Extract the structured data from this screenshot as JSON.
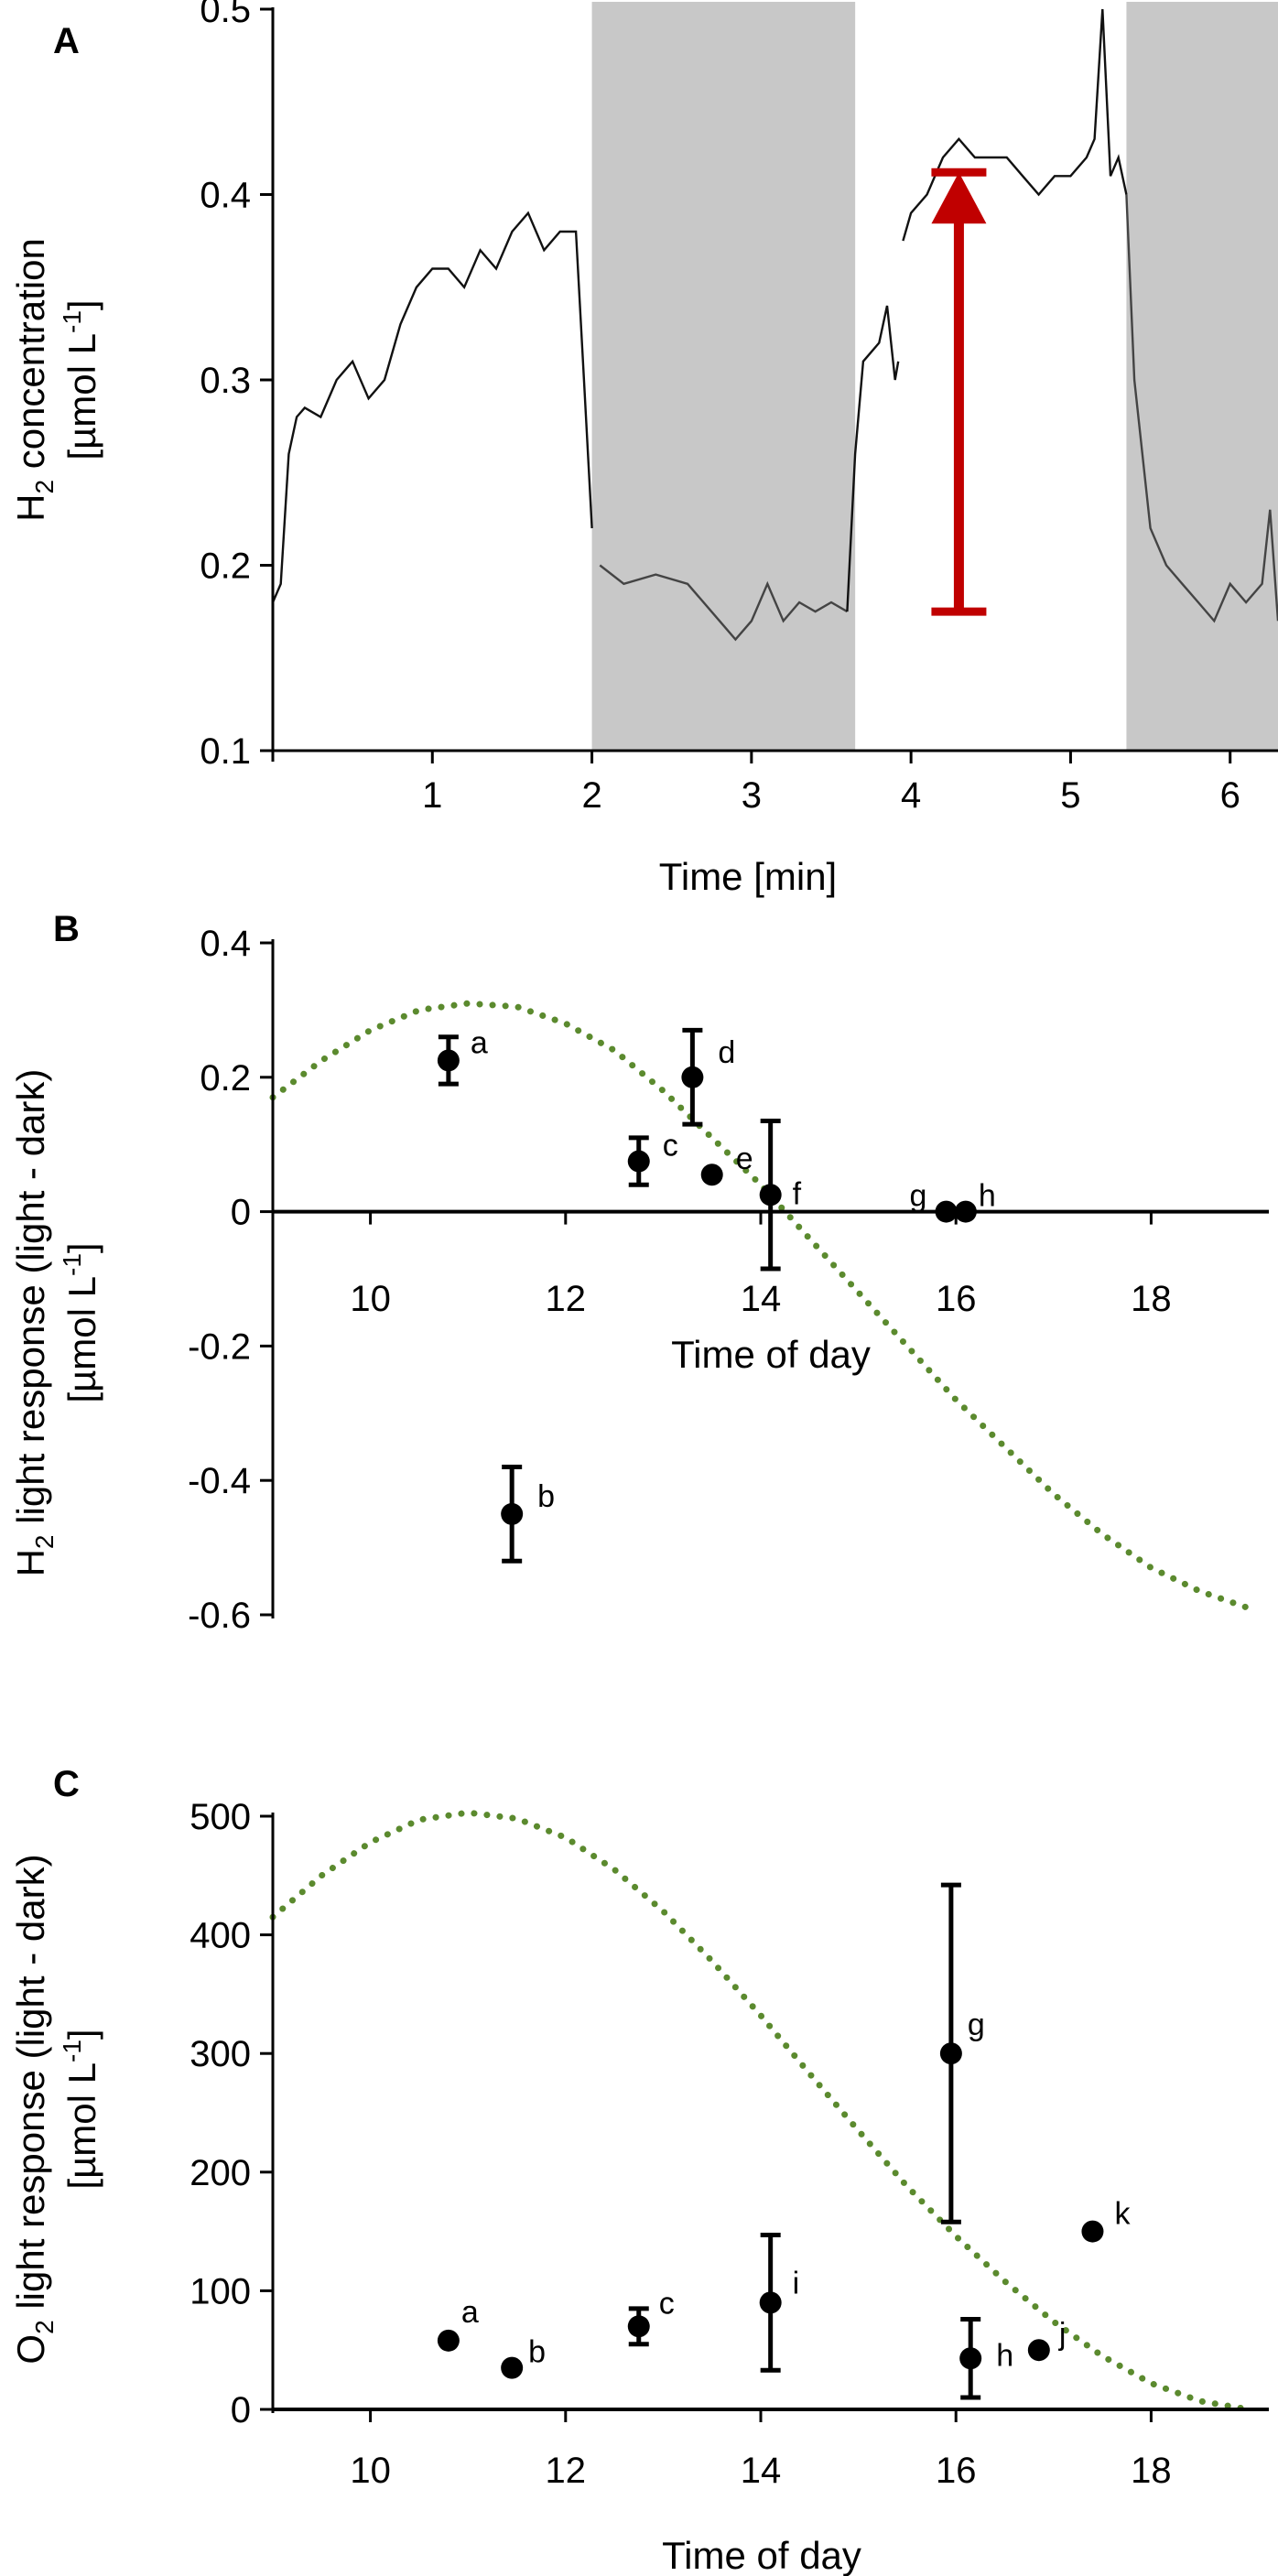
{
  "chart_data": [
    {
      "panel": "A",
      "type": "line",
      "xlabel": "Time [min]",
      "ylabel_line1": "H",
      "ylabel_line1_sub": "2",
      "ylabel_line1_rest": " concentration",
      "ylabel_line2": "[µmol L",
      "ylabel_line2_sup": "-1",
      "ylabel_line2_rest": "]",
      "xlim": [
        0,
        6.3
      ],
      "ylim": [
        0.1,
        0.5
      ],
      "xticks": [
        1,
        2,
        3,
        4,
        5,
        6
      ],
      "xtick_labels": [
        "1",
        "2",
        "3",
        "4",
        "5",
        "6"
      ],
      "yticks": [
        0.1,
        0.2,
        0.3,
        0.4,
        0.5
      ],
      "ytick_labels": [
        "0.1",
        "0.2",
        "0.3",
        "0.4",
        "0.5"
      ],
      "dark_periods": [
        [
          2.0,
          3.65
        ],
        [
          5.35,
          6.3
        ]
      ],
      "arrow": {
        "x": 4.3,
        "y_from": 0.175,
        "y_to": 0.41
      },
      "series": [
        {
          "name": "light1",
          "x": [
            0.0,
            0.05,
            0.1,
            0.15,
            0.2,
            0.3,
            0.4,
            0.5,
            0.6,
            0.7,
            0.8,
            0.9,
            1.0,
            1.1,
            1.2,
            1.3,
            1.4,
            1.5,
            1.6,
            1.7,
            1.8,
            1.9,
            1.95,
            2.0
          ],
          "y": [
            0.18,
            0.19,
            0.26,
            0.28,
            0.285,
            0.28,
            0.3,
            0.31,
            0.29,
            0.3,
            0.33,
            0.35,
            0.36,
            0.36,
            0.35,
            0.37,
            0.36,
            0.38,
            0.39,
            0.37,
            0.38,
            0.38,
            0.3,
            0.22
          ]
        },
        {
          "name": "dark1",
          "x": [
            2.05,
            2.2,
            2.4,
            2.6,
            2.8,
            2.9,
            3.0,
            3.1,
            3.2,
            3.3,
            3.4,
            3.5,
            3.6
          ],
          "y": [
            0.2,
            0.19,
            0.195,
            0.19,
            0.17,
            0.16,
            0.17,
            0.19,
            0.17,
            0.18,
            0.175,
            0.18,
            0.175
          ]
        },
        {
          "name": "light2",
          "x": [
            3.6,
            3.65,
            3.7,
            3.8,
            3.85,
            3.9,
            3.92
          ],
          "y": [
            0.175,
            0.26,
            0.31,
            0.32,
            0.34,
            0.3,
            0.31
          ]
        },
        {
          "name": "light3",
          "x": [
            3.95,
            4.0,
            4.1,
            4.2,
            4.3,
            4.4,
            4.5,
            4.6,
            4.7,
            4.8,
            4.9,
            5.0,
            5.1,
            5.15,
            5.2,
            5.25,
            5.3,
            5.35
          ],
          "y": [
            0.375,
            0.39,
            0.4,
            0.42,
            0.43,
            0.42,
            0.42,
            0.42,
            0.41,
            0.4,
            0.41,
            0.41,
            0.42,
            0.43,
            0.5,
            0.41,
            0.42,
            0.4
          ]
        },
        {
          "name": "dark2",
          "x": [
            5.35,
            5.4,
            5.5,
            5.6,
            5.7,
            5.8,
            5.9,
            6.0,
            6.1,
            6.2,
            6.25,
            6.3
          ],
          "y": [
            0.4,
            0.3,
            0.22,
            0.2,
            0.19,
            0.18,
            0.17,
            0.19,
            0.18,
            0.19,
            0.23,
            0.17
          ]
        }
      ]
    },
    {
      "panel": "B",
      "type": "scatter",
      "xlabel": "Time of day",
      "ylabel_line1": "H",
      "ylabel_line1_sub": "2",
      "ylabel_line1_rest": " light response (light - dark)",
      "ylabel_line2": "[µmol L",
      "ylabel_line2_sup": "-1",
      "ylabel_line2_rest": "]",
      "xlim": [
        9,
        19.3
      ],
      "ylim": [
        -0.6,
        0.4
      ],
      "xticks": [
        10,
        12,
        14,
        16,
        18
      ],
      "xtick_labels": [
        "10",
        "12",
        "14",
        "16",
        "18"
      ],
      "yticks": [
        -0.6,
        -0.4,
        -0.2,
        0,
        0.2,
        0.4
      ],
      "ytick_labels": [
        "-0.6",
        "-0.4",
        "-0.2",
        "0",
        "0.2",
        "0.4"
      ],
      "points": [
        {
          "label": "a",
          "x": 10.8,
          "y": 0.225,
          "err": 0.035
        },
        {
          "label": "b",
          "x": 11.45,
          "y": -0.45,
          "err": 0.07
        },
        {
          "label": "c",
          "x": 12.75,
          "y": 0.075,
          "err": 0.035
        },
        {
          "label": "d",
          "x": 13.3,
          "y": 0.2,
          "err": 0.07
        },
        {
          "label": "e",
          "x": 13.5,
          "y": 0.055,
          "err": 0
        },
        {
          "label": "f",
          "x": 14.1,
          "y": 0.025,
          "err": 0.11
        },
        {
          "label": "g",
          "x": 15.9,
          "y": 0.0,
          "err": 0
        },
        {
          "label": "h",
          "x": 16.1,
          "y": 0.0,
          "err": 0
        }
      ],
      "curve": {
        "x": [
          9.0,
          9.5,
          10.0,
          10.5,
          11.0,
          11.5,
          12.0,
          12.5,
          13.0,
          13.5,
          14.0,
          14.5,
          15.0,
          15.5,
          16.0,
          16.5,
          17.0,
          17.5,
          18.0,
          18.5,
          19.0
        ],
        "y": [
          0.17,
          0.225,
          0.27,
          0.3,
          0.31,
          0.305,
          0.28,
          0.24,
          0.18,
          0.11,
          0.04,
          -0.04,
          -0.12,
          -0.2,
          -0.28,
          -0.35,
          -0.42,
          -0.48,
          -0.53,
          -0.565,
          -0.59
        ]
      }
    },
    {
      "panel": "C",
      "type": "scatter",
      "xlabel": "Time of day",
      "ylabel_line1": "O",
      "ylabel_line1_sub": "2",
      "ylabel_line1_rest": " light response (light - dark)",
      "ylabel_line2": "[µmol L",
      "ylabel_line2_sup": "-1",
      "ylabel_line2_rest": "]",
      "xlim": [
        9,
        19.3
      ],
      "ylim": [
        0,
        500
      ],
      "xticks": [
        10,
        12,
        14,
        16,
        18
      ],
      "xtick_labels": [
        "10",
        "12",
        "14",
        "16",
        "18"
      ],
      "yticks": [
        0,
        100,
        200,
        300,
        400,
        500
      ],
      "ytick_labels": [
        "0",
        "100",
        "200",
        "300",
        "400",
        "500"
      ],
      "points": [
        {
          "label": "a",
          "x": 10.8,
          "y": 58,
          "err": 0
        },
        {
          "label": "b",
          "x": 11.45,
          "y": 35,
          "err": 0
        },
        {
          "label": "c",
          "x": 12.75,
          "y": 70,
          "err": 15
        },
        {
          "label": "i",
          "x": 14.1,
          "y": 90,
          "err": 57
        },
        {
          "label": "g",
          "x": 15.95,
          "y": 300,
          "err": 142
        },
        {
          "label": "h",
          "x": 16.15,
          "y": 43,
          "err": 33
        },
        {
          "label": "j",
          "x": 16.85,
          "y": 50,
          "err": 0
        },
        {
          "label": "k",
          "x": 17.4,
          "y": 150,
          "err": 0
        }
      ],
      "curve": {
        "x": [
          9.0,
          9.5,
          10.0,
          10.5,
          11.0,
          11.5,
          12.0,
          12.5,
          13.0,
          13.5,
          14.0,
          14.5,
          15.0,
          15.5,
          16.0,
          16.5,
          17.0,
          17.5,
          18.0,
          18.5,
          19.0
        ],
        "y": [
          415,
          450,
          478,
          497,
          503,
          498,
          482,
          455,
          420,
          378,
          332,
          283,
          235,
          188,
          146,
          108,
          74,
          45,
          22,
          7,
          0
        ]
      }
    }
  ]
}
